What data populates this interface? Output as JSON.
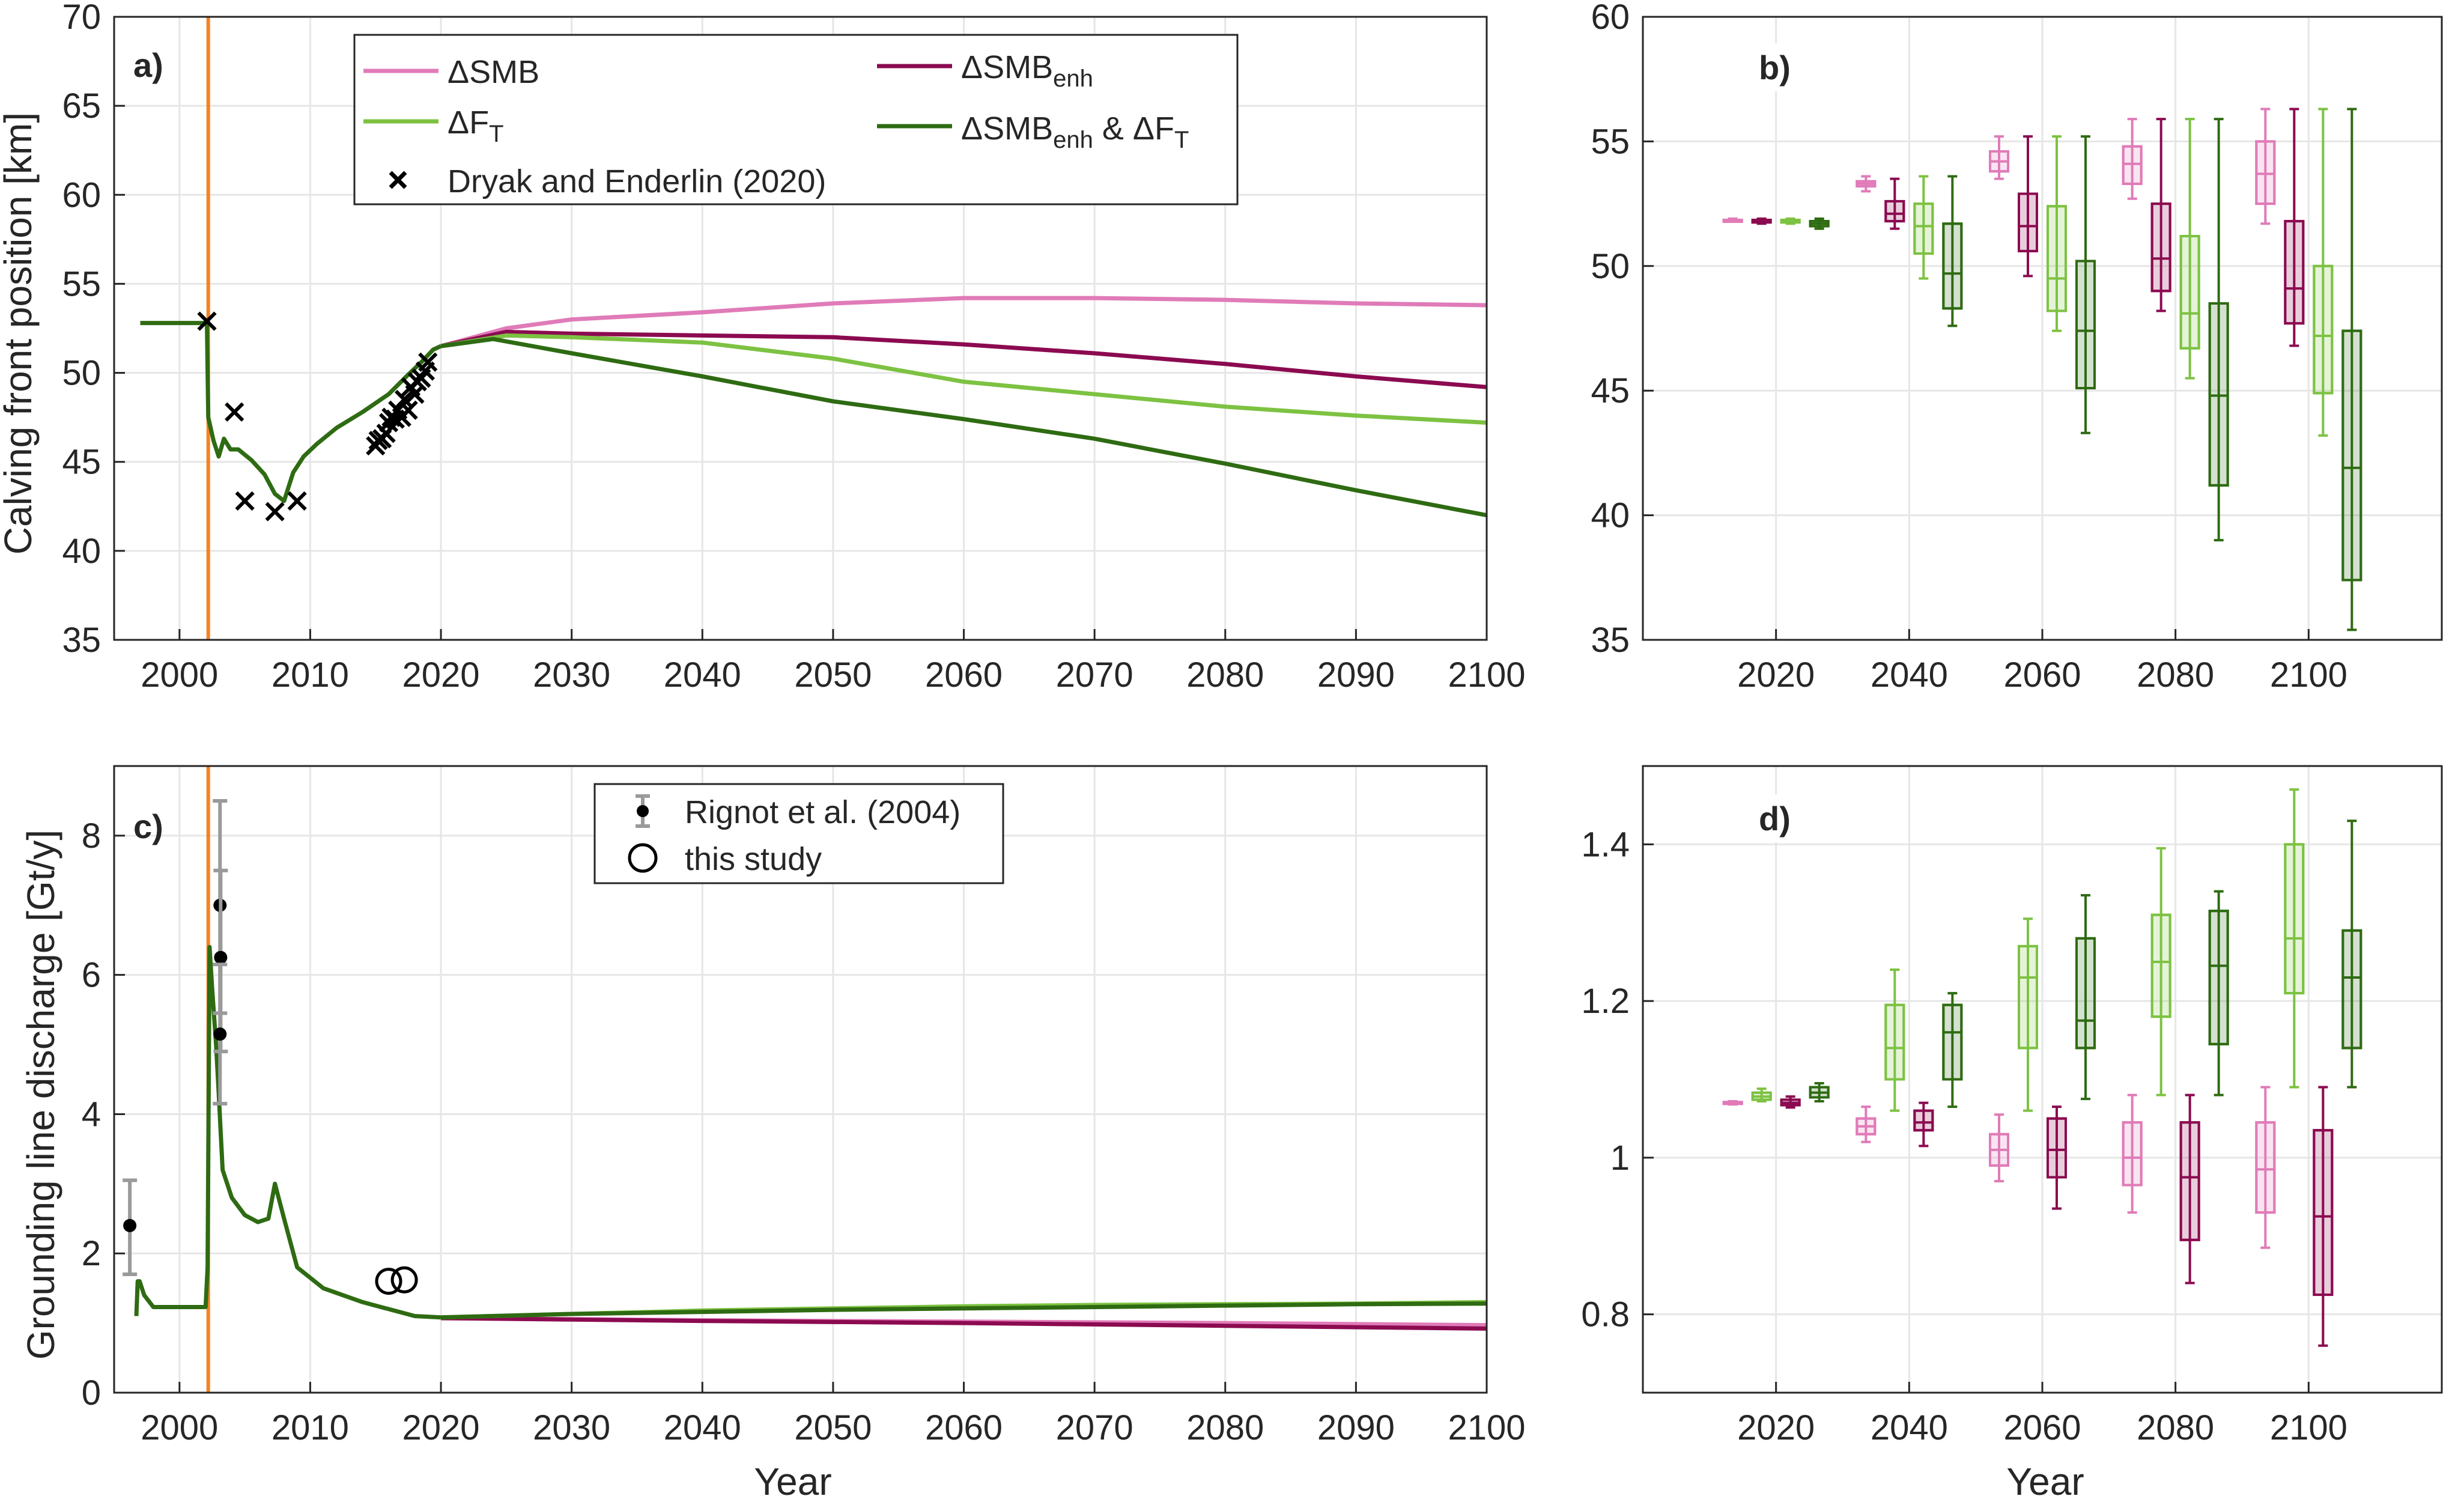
{
  "colors": {
    "smb": "#e07bb8",
    "smb_enh": "#8b0a50",
    "ft": "#7dc242",
    "smb_enh_ft": "#2e6b12",
    "event_line": "#f58220",
    "rignot_err": "#9a9a9a",
    "grid": "#e6e6e6",
    "axis": "#262626"
  },
  "legend_a": {
    "smb": "ΔSMB",
    "smb_enh": "ΔSMB",
    "smb_enh_sub": "enh",
    "ft": "ΔF",
    "ft_sub": "T",
    "combo_a": "ΔSMB",
    "combo_sub1": "enh",
    "combo_b": " & ΔF",
    "combo_sub2": "T",
    "obs": "Dryak and Enderlin (2020)"
  },
  "legend_c": {
    "rignot": "Rignot et al. (2004)",
    "this_study": "this study"
  },
  "chart_data": [
    {
      "panel": "a)",
      "type": "line",
      "ylabel": "Calving front position [km]",
      "xlabel": "",
      "xlim": [
        1995,
        2100
      ],
      "ylim": [
        35,
        70
      ],
      "xticks": [
        2000,
        2010,
        2020,
        2030,
        2040,
        2050,
        2060,
        2070,
        2080,
        2090,
        2100
      ],
      "yticks": [
        35,
        40,
        45,
        50,
        55,
        60,
        65,
        70
      ],
      "grid": true,
      "legend_position": "top-center",
      "event_line_x": 2002.2,
      "history": {
        "x": [
          1997,
          2002.1,
          2002.2,
          2002.6,
          2003.0,
          2003.4,
          2003.9,
          2004.5,
          2005.5,
          2006.5,
          2007.3,
          2008.0,
          2008.7,
          2009.5,
          2010.5,
          2012,
          2014,
          2016,
          2017.5,
          2018.5,
          2019.4,
          2020
        ],
        "y": [
          52.8,
          52.8,
          47.5,
          46.2,
          45.3,
          46.3,
          45.7,
          45.7,
          45.1,
          44.3,
          43.2,
          42.8,
          44.4,
          45.3,
          46.0,
          46.9,
          47.8,
          48.8,
          49.9,
          50.6,
          51.3,
          51.5
        ]
      },
      "series": [
        {
          "name": "ΔSMB",
          "color_key": "smb",
          "x": [
            2020,
            2025,
            2030,
            2040,
            2050,
            2060,
            2070,
            2080,
            2090,
            2100
          ],
          "y": [
            51.5,
            52.5,
            53.0,
            53.4,
            53.9,
            54.2,
            54.2,
            54.1,
            53.9,
            53.8
          ]
        },
        {
          "name": "ΔSMB_enh",
          "color_key": "smb_enh",
          "x": [
            2020,
            2025,
            2030,
            2040,
            2050,
            2060,
            2070,
            2080,
            2090,
            2100
          ],
          "y": [
            51.5,
            52.3,
            52.2,
            52.1,
            52.0,
            51.6,
            51.1,
            50.5,
            49.8,
            49.2
          ]
        },
        {
          "name": "ΔF_T",
          "color_key": "ft",
          "x": [
            2020,
            2025,
            2030,
            2040,
            2050,
            2060,
            2070,
            2080,
            2090,
            2100
          ],
          "y": [
            51.5,
            52.1,
            52.0,
            51.7,
            50.8,
            49.5,
            48.8,
            48.1,
            47.6,
            47.2
          ]
        },
        {
          "name": "ΔSMB_enh & ΔF_T",
          "color_key": "smb_enh_ft",
          "x": [
            2020,
            2024,
            2030,
            2040,
            2050,
            2060,
            2070,
            2080,
            2090,
            2100
          ],
          "y": [
            51.5,
            51.9,
            51.1,
            49.8,
            48.4,
            47.4,
            46.3,
            44.9,
            43.4,
            42.0
          ]
        }
      ],
      "observations": {
        "name": "Dryak and Enderlin (2020)",
        "x": [
          2002.1,
          2004.2,
          2005.0,
          2007.3,
          2009.0,
          2015.0,
          2015.2,
          2015.5,
          2015.8,
          2016.0,
          2016.2,
          2016.5,
          2016.7,
          2017.0,
          2017.2,
          2017.5,
          2017.7,
          2018.0,
          2018.2,
          2018.5,
          2018.8,
          2019.0
        ],
        "y": [
          52.9,
          47.8,
          42.8,
          42.2,
          42.8,
          45.9,
          46.2,
          46.3,
          46.6,
          47.2,
          47.5,
          47.4,
          47.9,
          47.5,
          48.5,
          47.9,
          49.2,
          48.8,
          49.5,
          49.7,
          50.1,
          50.6
        ]
      }
    },
    {
      "panel": "b)",
      "type": "box",
      "ylim": [
        35,
        60
      ],
      "yticks": [
        35,
        40,
        45,
        50,
        55,
        60
      ],
      "categories": [
        "2020",
        "2040",
        "2060",
        "2080",
        "2100"
      ],
      "grid": true,
      "series_order": [
        "smb",
        "smb_enh",
        "ft",
        "smb_enh_ft"
      ],
      "boxes": {
        "2020": {
          "smb": [
            51.8,
            51.85,
            51.85,
            51.85,
            51.9
          ],
          "ft": [
            51.7,
            51.75,
            51.8,
            51.85,
            51.9
          ],
          "smb_enh": [
            51.7,
            51.75,
            51.8,
            51.85,
            51.9
          ],
          "smb_enh_ft": [
            51.5,
            51.6,
            51.7,
            51.8,
            51.9
          ]
        },
        "2040": {
          "smb": [
            53.0,
            53.2,
            53.3,
            53.4,
            53.6
          ],
          "ft": [
            49.5,
            50.5,
            51.6,
            52.5,
            53.6
          ],
          "smb_enh": [
            51.5,
            51.8,
            52.1,
            52.6,
            53.5
          ],
          "smb_enh_ft": [
            47.6,
            48.3,
            49.7,
            51.7,
            53.6
          ]
        },
        "2060": {
          "smb": [
            53.5,
            53.8,
            54.2,
            54.6,
            55.2
          ],
          "ft": [
            47.4,
            48.2,
            49.5,
            52.4,
            55.2
          ],
          "smb_enh": [
            49.6,
            50.6,
            51.6,
            52.9,
            55.2
          ],
          "smb_enh_ft": [
            43.3,
            45.1,
            47.4,
            50.2,
            55.2
          ]
        },
        "2080": {
          "smb": [
            52.7,
            53.3,
            54.1,
            54.8,
            55.9
          ],
          "ft": [
            45.5,
            46.7,
            48.1,
            51.2,
            55.9
          ],
          "smb_enh": [
            48.2,
            49.0,
            50.3,
            52.5,
            55.9
          ],
          "smb_enh_ft": [
            39.0,
            41.2,
            44.8,
            48.5,
            55.9
          ]
        },
        "2100": {
          "smb": [
            51.7,
            52.5,
            53.7,
            55.0,
            56.3
          ],
          "ft": [
            43.2,
            44.9,
            47.2,
            50.0,
            56.3
          ],
          "smb_enh": [
            46.8,
            47.7,
            49.1,
            51.8,
            56.3
          ],
          "smb_enh_ft": [
            35.4,
            37.4,
            41.9,
            47.4,
            56.3
          ]
        }
      }
    },
    {
      "panel": "c)",
      "type": "line",
      "ylabel": "Grounding line discharge [Gt/y]",
      "xlabel": "Year",
      "xlim": [
        1995,
        2100
      ],
      "ylim": [
        0,
        9
      ],
      "xticks": [
        2000,
        2010,
        2020,
        2030,
        2040,
        2050,
        2060,
        2070,
        2080,
        2090,
        2100
      ],
      "yticks": [
        0,
        2,
        4,
        6,
        8
      ],
      "grid": true,
      "legend_position": "top-center",
      "event_line_x": 2002.2,
      "history": {
        "x": [
          1996.7,
          1996.8,
          1996.95,
          1997.3,
          1998.0,
          2000.0,
          2002.0,
          2002.15,
          2002.3,
          2002.5,
          2002.8,
          2003.0,
          2003.3,
          2004.0,
          2005.0,
          2006.0,
          2006.8,
          2007.3,
          2008.0,
          2009.0,
          2011,
          2014,
          2016,
          2018,
          2020
        ],
        "y": [
          1.1,
          1.6,
          1.6,
          1.4,
          1.23,
          1.23,
          1.23,
          1.8,
          6.4,
          5.8,
          5.0,
          4.3,
          3.2,
          2.8,
          2.55,
          2.45,
          2.5,
          3.0,
          2.5,
          1.8,
          1.5,
          1.3,
          1.2,
          1.1,
          1.08
        ]
      },
      "series": [
        {
          "name": "ΔSMB",
          "color_key": "smb",
          "x": [
            2020,
            2040,
            2060,
            2080,
            2100
          ],
          "y": [
            1.07,
            1.04,
            1.02,
            1.0,
            0.97
          ]
        },
        {
          "name": "ΔSMB_enh",
          "color_key": "smb_enh",
          "x": [
            2020,
            2040,
            2060,
            2080,
            2100
          ],
          "y": [
            1.07,
            1.03,
            1.0,
            0.96,
            0.92
          ]
        },
        {
          "name": "ΔF_T",
          "color_key": "ft",
          "x": [
            2020,
            2030,
            2040,
            2050,
            2060,
            2070,
            2080,
            2090,
            2100
          ],
          "y": [
            1.08,
            1.13,
            1.18,
            1.21,
            1.24,
            1.26,
            1.27,
            1.28,
            1.3
          ]
        },
        {
          "name": "ΔSMB_enh & ΔF_T",
          "color_key": "smb_enh_ft",
          "x": [
            2020,
            2030,
            2040,
            2050,
            2060,
            2070,
            2080,
            2090,
            2100
          ],
          "y": [
            1.08,
            1.13,
            1.16,
            1.19,
            1.21,
            1.23,
            1.25,
            1.27,
            1.28
          ]
        }
      ],
      "rignot": {
        "name": "Rignot et al. (2004)",
        "points": [
          {
            "x": 1996.2,
            "y": 2.4,
            "err_lo": 1.7,
            "err_hi": 3.05
          },
          {
            "x": 2003.1,
            "y": 7.0,
            "err_lo": 5.45,
            "err_hi": 8.5
          },
          {
            "x": 2003.15,
            "y": 6.25,
            "err_lo": 4.9,
            "err_hi": 7.5
          },
          {
            "x": 2003.1,
            "y": 5.15,
            "err_lo": 4.15,
            "err_hi": 6.15
          }
        ]
      },
      "this_study": {
        "name": "this study",
        "x": [
          2016.0,
          2017.2
        ],
        "y": [
          1.6,
          1.62
        ]
      }
    },
    {
      "panel": "d)",
      "type": "box",
      "xlabel": "Year",
      "ylim": [
        0.7,
        1.5
      ],
      "yticks": [
        0.8,
        1.0,
        1.2,
        1.4
      ],
      "ytick_labels": [
        "0.8",
        "1",
        "1.2",
        "1.4"
      ],
      "categories": [
        "2020",
        "2040",
        "2060",
        "2080",
        "2100"
      ],
      "grid": true,
      "series_order": [
        "smb",
        "ft",
        "smb_enh",
        "smb_enh_ft"
      ],
      "boxes": {
        "2020": {
          "smb": [
            1.068,
            1.069,
            1.07,
            1.071,
            1.072
          ],
          "ft": [
            1.072,
            1.074,
            1.078,
            1.083,
            1.088
          ],
          "smb_enh": [
            1.064,
            1.067,
            1.07,
            1.074,
            1.078
          ],
          "smb_enh_ft": [
            1.072,
            1.077,
            1.083,
            1.09,
            1.095
          ]
        },
        "2040": {
          "smb": [
            1.02,
            1.03,
            1.04,
            1.05,
            1.065
          ],
          "ft": [
            1.06,
            1.1,
            1.14,
            1.195,
            1.24
          ],
          "smb_enh": [
            1.015,
            1.035,
            1.045,
            1.06,
            1.07
          ],
          "smb_enh_ft": [
            1.065,
            1.1,
            1.16,
            1.195,
            1.21
          ]
        },
        "2060": {
          "smb": [
            0.97,
            0.99,
            1.01,
            1.03,
            1.055
          ],
          "ft": [
            1.06,
            1.14,
            1.23,
            1.27,
            1.305
          ],
          "smb_enh": [
            0.935,
            0.975,
            1.01,
            1.05,
            1.065
          ],
          "smb_enh_ft": [
            1.075,
            1.14,
            1.175,
            1.28,
            1.335
          ]
        },
        "2080": {
          "smb": [
            0.93,
            0.965,
            1.0,
            1.045,
            1.08
          ],
          "ft": [
            1.08,
            1.18,
            1.25,
            1.31,
            1.395
          ],
          "smb_enh": [
            0.84,
            0.895,
            0.975,
            1.045,
            1.08
          ],
          "smb_enh_ft": [
            1.08,
            1.145,
            1.245,
            1.315,
            1.34
          ]
        },
        "2100": {
          "smb": [
            0.885,
            0.93,
            0.985,
            1.045,
            1.09
          ],
          "ft": [
            1.09,
            1.21,
            1.28,
            1.4,
            1.47
          ],
          "smb_enh": [
            0.76,
            0.825,
            0.925,
            1.035,
            1.09
          ],
          "smb_enh_ft": [
            1.09,
            1.14,
            1.23,
            1.29,
            1.43
          ]
        }
      }
    }
  ]
}
